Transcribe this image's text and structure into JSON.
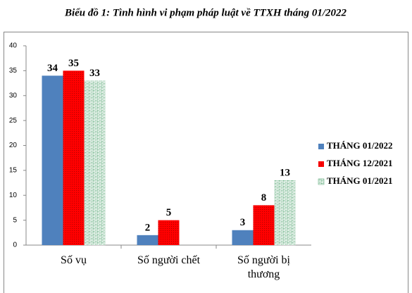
{
  "chart_data": {
    "type": "bar",
    "title": "Biểu đồ 1: Tình hình vi phạm pháp luật về TTXH tháng 01/2022",
    "categories": [
      "Số vụ",
      "Số người chết",
      "Số người bị thương"
    ],
    "series": [
      {
        "name": "THÁNG 01/2022",
        "color": "#4f81bd",
        "values": [
          34,
          2,
          3
        ]
      },
      {
        "name": "THÁNG 12/2021",
        "color": "#ff0000",
        "pattern": "dots",
        "values": [
          35,
          5,
          8
        ]
      },
      {
        "name": "THÁNG 01/2021",
        "color": "#4aa06a",
        "pattern": "brick",
        "values": [
          33,
          null,
          13
        ]
      }
    ],
    "ylim": [
      0,
      40
    ],
    "yticks": [
      0,
      5,
      10,
      15,
      20,
      25,
      30,
      35,
      40
    ],
    "grid": false,
    "legend": "right"
  }
}
